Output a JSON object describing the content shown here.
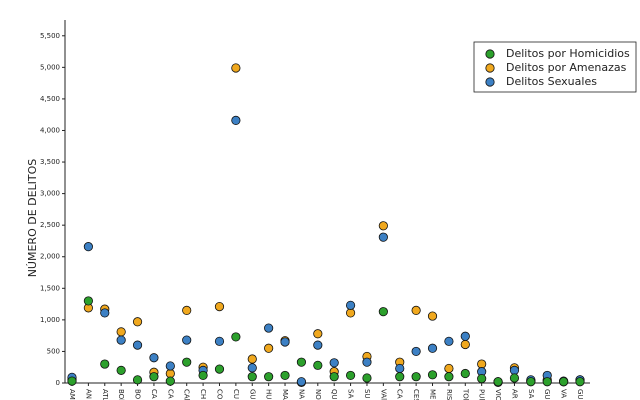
{
  "chart_data": {
    "type": "scatter",
    "y_label": "NÚMERO DE DELITOS",
    "categories": [
      "AM",
      "AN",
      "ATL",
      "BOl",
      "BO",
      "CA",
      "CA",
      "CAl",
      "CH",
      "CO",
      "CU",
      "GU",
      "HU",
      "MA",
      "NA",
      "NO",
      "QU",
      "SA",
      "SU",
      "VAl",
      "CA",
      "CES",
      "ME",
      "RIS",
      "TOl",
      "PUl",
      "VIC",
      "AR",
      "SA",
      "GU",
      "VA",
      "GU"
    ],
    "series": [
      {
        "name": "Delitos por Homicidios",
        "color": "#2ca02c",
        "values": [
          30,
          1300,
          300,
          200,
          50,
          100,
          30,
          330,
          120,
          220,
          730,
          100,
          100,
          120,
          330,
          280,
          100,
          120,
          80,
          1130,
          100,
          100,
          130,
          100,
          150,
          70,
          20,
          80,
          20,
          20,
          20,
          20
        ]
      },
      {
        "name": "Delitos por Amenazas",
        "color": "#f0a81e",
        "values": [
          60,
          1190,
          1170,
          810,
          970,
          170,
          150,
          1150,
          250,
          1210,
          4990,
          380,
          550,
          670,
          10,
          780,
          180,
          1110,
          420,
          2490,
          330,
          1150,
          1060,
          230,
          610,
          300,
          10,
          240,
          30,
          50,
          20,
          50
        ]
      },
      {
        "name": "Delitos Sexuales",
        "color": "#3c80c4",
        "values": [
          90,
          2160,
          1110,
          680,
          600,
          400,
          270,
          680,
          200,
          660,
          4160,
          240,
          870,
          650,
          20,
          600,
          320,
          1230,
          330,
          2310,
          230,
          500,
          550,
          660,
          740,
          180,
          20,
          200,
          50,
          120,
          30,
          50
        ]
      }
    ],
    "ylim": [
      0,
      5750
    ],
    "yticks": [
      0,
      500,
      {
        "value": 1000,
        "label": "1,000"
      },
      {
        "value": 1500,
        "label": "1,500"
      },
      {
        "value": 2000,
        "label": "2,000"
      },
      {
        "value": 2500,
        "label": "2,500"
      },
      {
        "value": 3000,
        "label": "3,000"
      },
      {
        "value": 3500,
        "label": "3,500"
      },
      {
        "value": 4000,
        "label": "4,000"
      },
      {
        "value": 4500,
        "label": "4,500"
      },
      {
        "value": 5000,
        "label": "5,000"
      },
      {
        "value": 5500,
        "label": "5,500"
      }
    ],
    "legend": "upper right"
  }
}
